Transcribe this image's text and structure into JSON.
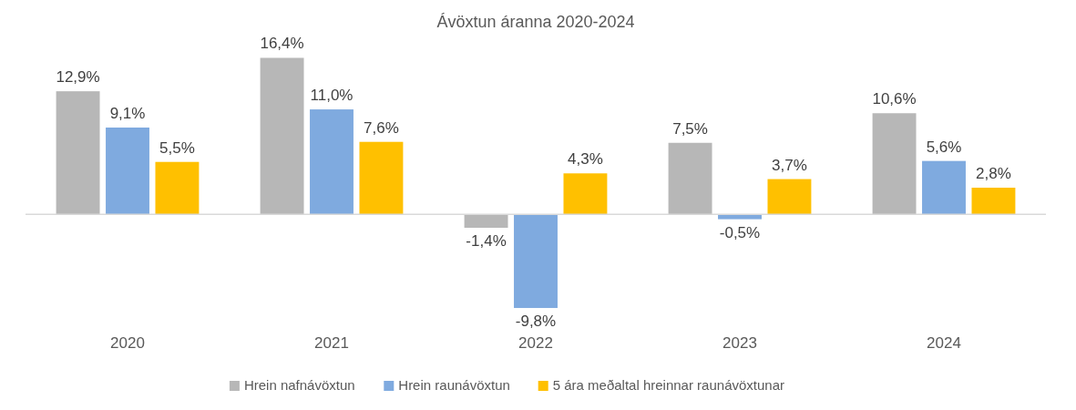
{
  "chart_data": {
    "type": "bar",
    "title": "Ávöxtun áranna 2020-2024",
    "categories": [
      "2020",
      "2021",
      "2022",
      "2023",
      "2024"
    ],
    "legend": "bottom",
    "series": [
      {
        "name": "Hrein nafnávöxtun",
        "color": "#b7b7b7",
        "values": [
          12.9,
          16.4,
          -1.4,
          7.5,
          10.6
        ],
        "value_labels": [
          "12,9%",
          "16,4%",
          "-1,4%",
          "7,5%",
          "10,6%"
        ]
      },
      {
        "name": "Hrein raunávöxtun",
        "color": "#7faadf",
        "values": [
          9.1,
          11.0,
          -9.8,
          -0.5,
          5.6
        ],
        "value_labels": [
          "9,1%",
          "11,0%",
          "-9,8%",
          "-0,5%",
          "5,6%"
        ]
      },
      {
        "name": "5 ára meðaltal hreinnar raunávöxtunar",
        "color": "#ffc000",
        "values": [
          5.5,
          7.6,
          4.3,
          3.7,
          2.8
        ],
        "value_labels": [
          "5,5%",
          "7,6%",
          "4,3%",
          "3,7%",
          "2,8%"
        ]
      }
    ]
  }
}
